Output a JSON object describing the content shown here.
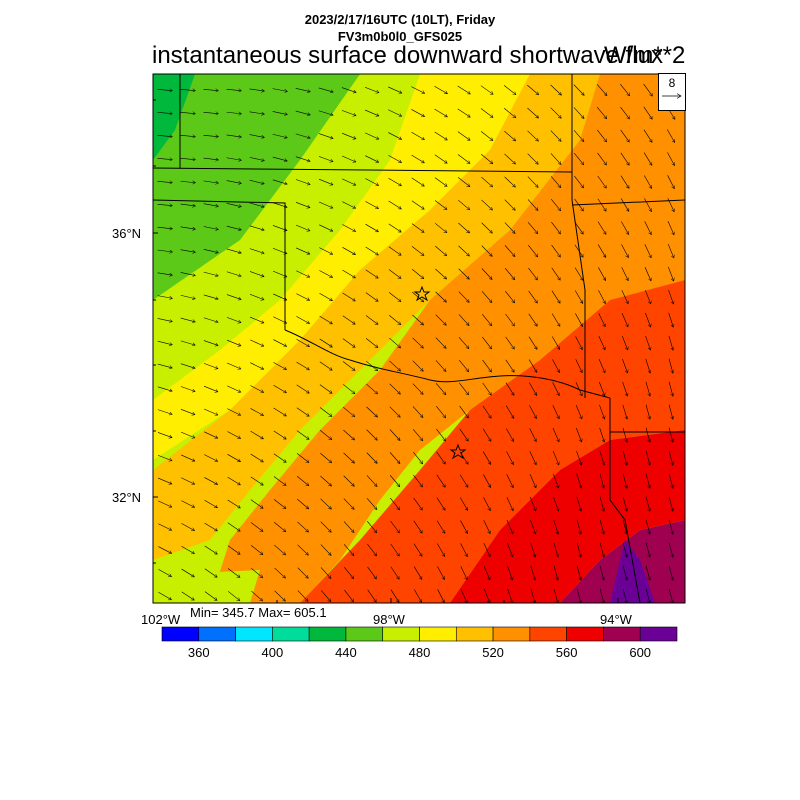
{
  "header": {
    "datetime": "2023/2/17/16UTC (10LT), Friday",
    "model": "FV3m0b0l0_GFS025",
    "title": "instantaneous surface downward shortwave flux",
    "units": "W/m**2"
  },
  "map": {
    "lat_labels": [
      "36°N",
      "32°N"
    ],
    "lon_labels": [
      "102°W",
      "98°W",
      "94°W"
    ],
    "stats": "Min= 345.7 Max= 605.1",
    "min": 345.7,
    "max": 605.1,
    "wind_reference": "8"
  },
  "colorbar": {
    "colors": [
      "#0000ff",
      "#0070ff",
      "#00e6ff",
      "#00dc9a",
      "#00b83c",
      "#5cc818",
      "#c8ee00",
      "#ffee00",
      "#ffc000",
      "#ff9000",
      "#ff4400",
      "#ee0000",
      "#a00050",
      "#6a0096"
    ],
    "labels": [
      "360",
      "400",
      "440",
      "480",
      "520",
      "560",
      "600"
    ],
    "min": 340,
    "max": 620
  }
}
